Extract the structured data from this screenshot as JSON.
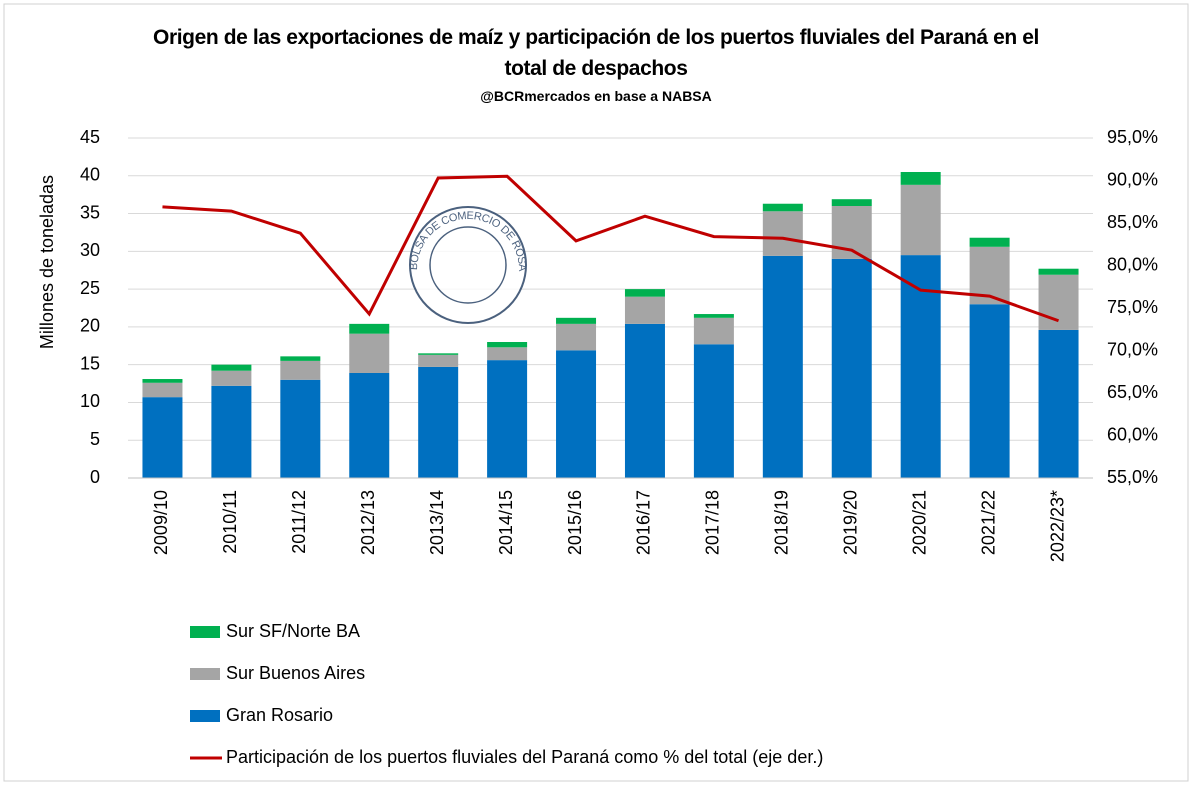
{
  "chart_data": {
    "type": "bar_line",
    "title": "Origen de las exportaciones de maíz y participación de los puertos fluviales del Paraná en el total de despachos",
    "subtitle": "@BCRmercados en base a NABSA",
    "watermark": "BOLSA DE COMERCIO DE ROSARIO",
    "ylabel": "Millones de toneladas",
    "categories": [
      "2009/10",
      "2010/11",
      "2011/12",
      "2012/13",
      "2013/14",
      "2014/15",
      "2015/16",
      "2016/17",
      "2017/18",
      "2018/19",
      "2019/20",
      "2020/21",
      "2021/22",
      "2022/23*"
    ],
    "ylim": [
      0,
      45
    ],
    "yticks": [
      0,
      5,
      10,
      15,
      20,
      25,
      30,
      35,
      40,
      45
    ],
    "y2lim": [
      55,
      95
    ],
    "y2ticks": [
      {
        "value": 55,
        "label": "55,0%"
      },
      {
        "value": 60,
        "label": "60,0%"
      },
      {
        "value": 65,
        "label": "65,0%"
      },
      {
        "value": 70,
        "label": "70,0%"
      },
      {
        "value": 75,
        "label": "75,0%"
      },
      {
        "value": 80,
        "label": "80,0%"
      },
      {
        "value": 85,
        "label": "85,0%"
      },
      {
        "value": 90,
        "label": "90,0%"
      },
      {
        "value": 95,
        "label": "95,0%"
      }
    ],
    "grid": true,
    "series": [
      {
        "name": "Gran Rosario",
        "color": "#0070c0",
        "type": "bar",
        "values": [
          10.7,
          12.2,
          13.0,
          13.9,
          14.7,
          15.6,
          16.9,
          20.4,
          17.7,
          29.4,
          29.0,
          29.5,
          23.0,
          19.6
        ]
      },
      {
        "name": "Sur Buenos Aires",
        "color": "#a5a5a5",
        "type": "bar",
        "values": [
          1.9,
          2.0,
          2.5,
          5.2,
          1.6,
          1.7,
          3.5,
          3.6,
          3.5,
          5.9,
          7.0,
          9.3,
          7.6,
          7.3
        ]
      },
      {
        "name": "Sur SF/Norte BA",
        "color": "#00b050",
        "type": "bar",
        "values": [
          0.5,
          0.8,
          0.6,
          1.3,
          0.2,
          0.7,
          0.8,
          1.0,
          0.5,
          1.0,
          0.9,
          1.7,
          1.2,
          0.8
        ]
      },
      {
        "name": "Participación de los puertos fluviales del Paraná como % del total (eje der.)",
        "color": "#c00000",
        "type": "line",
        "axis": "y2",
        "values": [
          86.9,
          86.4,
          83.8,
          74.3,
          90.3,
          90.5,
          82.9,
          85.8,
          83.4,
          83.2,
          81.8,
          77.1,
          76.4,
          73.5
        ]
      }
    ]
  }
}
